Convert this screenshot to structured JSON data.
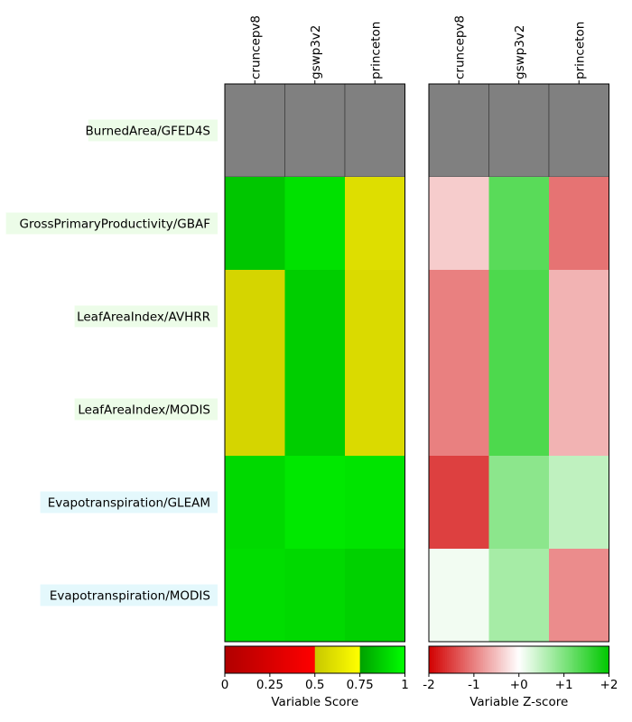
{
  "chart_data": [
    {
      "type": "heatmap",
      "name": "scores",
      "columns": [
        "cruncepv8",
        "gswp3v2",
        "princeton"
      ],
      "rows": [
        "BurnedArea/GFED4S",
        "GrossPrimaryProductivity/GBAF",
        "LeafAreaIndex/AVHRR",
        "LeafAreaIndex/MODIS",
        "Evapotranspiration/GLEAM",
        "Evapotranspiration/MODIS"
      ],
      "row_label_colors": [
        "#ecfce8",
        "#ecfce8",
        "#ecfce8",
        "#ecfce8",
        "#e4f8fc",
        "#e4f8fc"
      ],
      "values": [
        [
          null,
          null,
          null
        ],
        [
          0.85,
          0.92,
          0.6
        ],
        [
          0.56,
          0.87,
          0.58
        ],
        [
          0.56,
          0.87,
          0.58
        ],
        [
          0.9,
          0.94,
          0.93
        ],
        [
          0.91,
          0.9,
          0.88
        ]
      ],
      "missing_color": "#808080",
      "colorbar": {
        "label": "Variable Score",
        "ticks": [
          "0",
          "0.25",
          "0.5",
          "0.75",
          "1"
        ],
        "range": [
          0,
          1
        ]
      }
    },
    {
      "type": "heatmap",
      "name": "zscores",
      "columns": [
        "cruncepv8",
        "gswp3v2",
        "princeton"
      ],
      "rows": [
        "BurnedArea/GFED4S",
        "GrossPrimaryProductivity/GBAF",
        "LeafAreaIndex/AVHRR",
        "LeafAreaIndex/MODIS",
        "Evapotranspiration/GLEAM",
        "Evapotranspiration/MODIS"
      ],
      "values": [
        [
          null,
          null,
          null
        ],
        [
          -0.4,
          1.3,
          -1.1
        ],
        [
          -1.0,
          1.4,
          -0.6
        ],
        [
          -1.0,
          1.4,
          -0.6
        ],
        [
          -1.5,
          0.9,
          0.5
        ],
        [
          0.1,
          0.7,
          -0.9
        ]
      ],
      "missing_color": "#808080",
      "colorbar": {
        "label": "Variable Z-score",
        "ticks": [
          "-2",
          "-1",
          "+0",
          "+1",
          "+2"
        ],
        "range": [
          -2,
          2
        ]
      }
    }
  ]
}
